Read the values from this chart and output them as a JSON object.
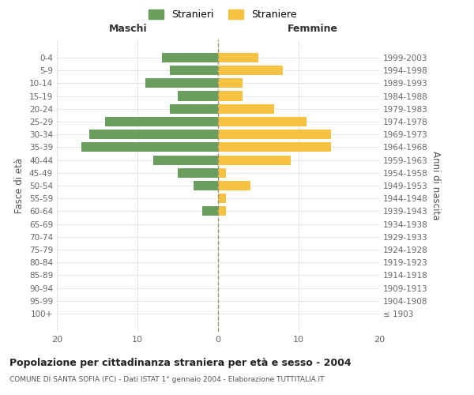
{
  "age_groups": [
    "100+",
    "95-99",
    "90-94",
    "85-89",
    "80-84",
    "75-79",
    "70-74",
    "65-69",
    "60-64",
    "55-59",
    "50-54",
    "45-49",
    "40-44",
    "35-39",
    "30-34",
    "25-29",
    "20-24",
    "15-19",
    "10-14",
    "5-9",
    "0-4"
  ],
  "birth_years": [
    "≤ 1903",
    "1904-1908",
    "1909-1913",
    "1914-1918",
    "1919-1923",
    "1924-1928",
    "1929-1933",
    "1934-1938",
    "1939-1943",
    "1944-1948",
    "1949-1953",
    "1954-1958",
    "1959-1963",
    "1964-1968",
    "1969-1973",
    "1974-1978",
    "1979-1983",
    "1984-1988",
    "1989-1993",
    "1994-1998",
    "1999-2003"
  ],
  "maschi": [
    0,
    0,
    0,
    0,
    0,
    0,
    0,
    0,
    2,
    0,
    3,
    5,
    8,
    17,
    16,
    14,
    6,
    5,
    9,
    6,
    7
  ],
  "femmine": [
    0,
    0,
    0,
    0,
    0,
    0,
    0,
    0,
    1,
    1,
    4,
    1,
    9,
    14,
    14,
    11,
    7,
    3,
    3,
    8,
    5
  ],
  "maschi_color": "#6a9e5e",
  "femmine_color": "#f5c242",
  "background_color": "#ffffff",
  "grid_color": "#cccccc",
  "title": "Popolazione per cittadinanza straniera per età e sesso - 2004",
  "subtitle": "COMUNE DI SANTA SOFIA (FC) - Dati ISTAT 1° gennaio 2004 - Elaborazione TUTTITALIA.IT",
  "left_label": "Maschi",
  "right_label": "Femmine",
  "y_left_label": "Fasce di età",
  "y_right_label": "Anni di nascita",
  "legend_maschi": "Stranieri",
  "legend_femmine": "Straniere",
  "xlim": 20,
  "bar_height": 0.75
}
